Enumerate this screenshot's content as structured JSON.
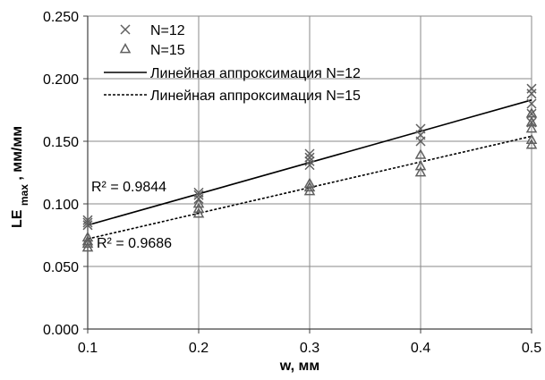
{
  "chart_data": {
    "type": "scatter",
    "x_label_main": "w, мм",
    "y_label_main": "LE",
    "y_label_sub": "max",
    "y_label_tail": ", мм/мм",
    "xlim": [
      0.1,
      0.5
    ],
    "ylim": [
      0.0,
      0.25
    ],
    "x_ticks": [
      "0.1",
      "0.2",
      "0.3",
      "0.4",
      "0.5"
    ],
    "y_ticks": [
      "0.000",
      "0.050",
      "0.100",
      "0.150",
      "0.200",
      "0.250"
    ],
    "x_tick_values": [
      0.1,
      0.2,
      0.3,
      0.4,
      0.5
    ],
    "y_tick_values": [
      0.0,
      0.05,
      0.1,
      0.15,
      0.2,
      0.25
    ],
    "grid": true,
    "legend_position": "top-left",
    "series": [
      {
        "name": "N=12",
        "marker": "x",
        "color": "#606060",
        "points": [
          [
            0.1,
            0.083
          ],
          [
            0.1,
            0.085
          ],
          [
            0.1,
            0.087
          ],
          [
            0.2,
            0.104
          ],
          [
            0.2,
            0.107
          ],
          [
            0.2,
            0.109
          ],
          [
            0.3,
            0.131
          ],
          [
            0.3,
            0.134
          ],
          [
            0.3,
            0.137
          ],
          [
            0.3,
            0.14
          ],
          [
            0.4,
            0.15
          ],
          [
            0.4,
            0.155
          ],
          [
            0.4,
            0.16
          ],
          [
            0.5,
            0.165
          ],
          [
            0.5,
            0.172
          ],
          [
            0.5,
            0.18
          ],
          [
            0.5,
            0.188
          ],
          [
            0.5,
            0.192
          ]
        ]
      },
      {
        "name": "N=15",
        "marker": "triangle",
        "color": "#606060",
        "points": [
          [
            0.1,
            0.065
          ],
          [
            0.1,
            0.068
          ],
          [
            0.1,
            0.07
          ],
          [
            0.1,
            0.073
          ],
          [
            0.2,
            0.092
          ],
          [
            0.2,
            0.096
          ],
          [
            0.2,
            0.1
          ],
          [
            0.3,
            0.11
          ],
          [
            0.3,
            0.113
          ],
          [
            0.3,
            0.116
          ],
          [
            0.4,
            0.125
          ],
          [
            0.4,
            0.13
          ],
          [
            0.4,
            0.139
          ],
          [
            0.5,
            0.147
          ],
          [
            0.5,
            0.151
          ],
          [
            0.5,
            0.16
          ],
          [
            0.5,
            0.165
          ],
          [
            0.5,
            0.172
          ]
        ]
      }
    ],
    "trendlines": [
      {
        "name": "Линейная аппроксимация N=12",
        "style": "solid",
        "color": "#000000",
        "start": [
          0.1,
          0.083
        ],
        "end": [
          0.5,
          0.183
        ],
        "r2_label": "R² = 0.9844"
      },
      {
        "name": "Линейная аппроксимация N=15",
        "style": "dashed",
        "color": "#000000",
        "start": [
          0.1,
          0.072
        ],
        "end": [
          0.5,
          0.154
        ],
        "r2_label": "R² = 0.9686"
      }
    ]
  }
}
